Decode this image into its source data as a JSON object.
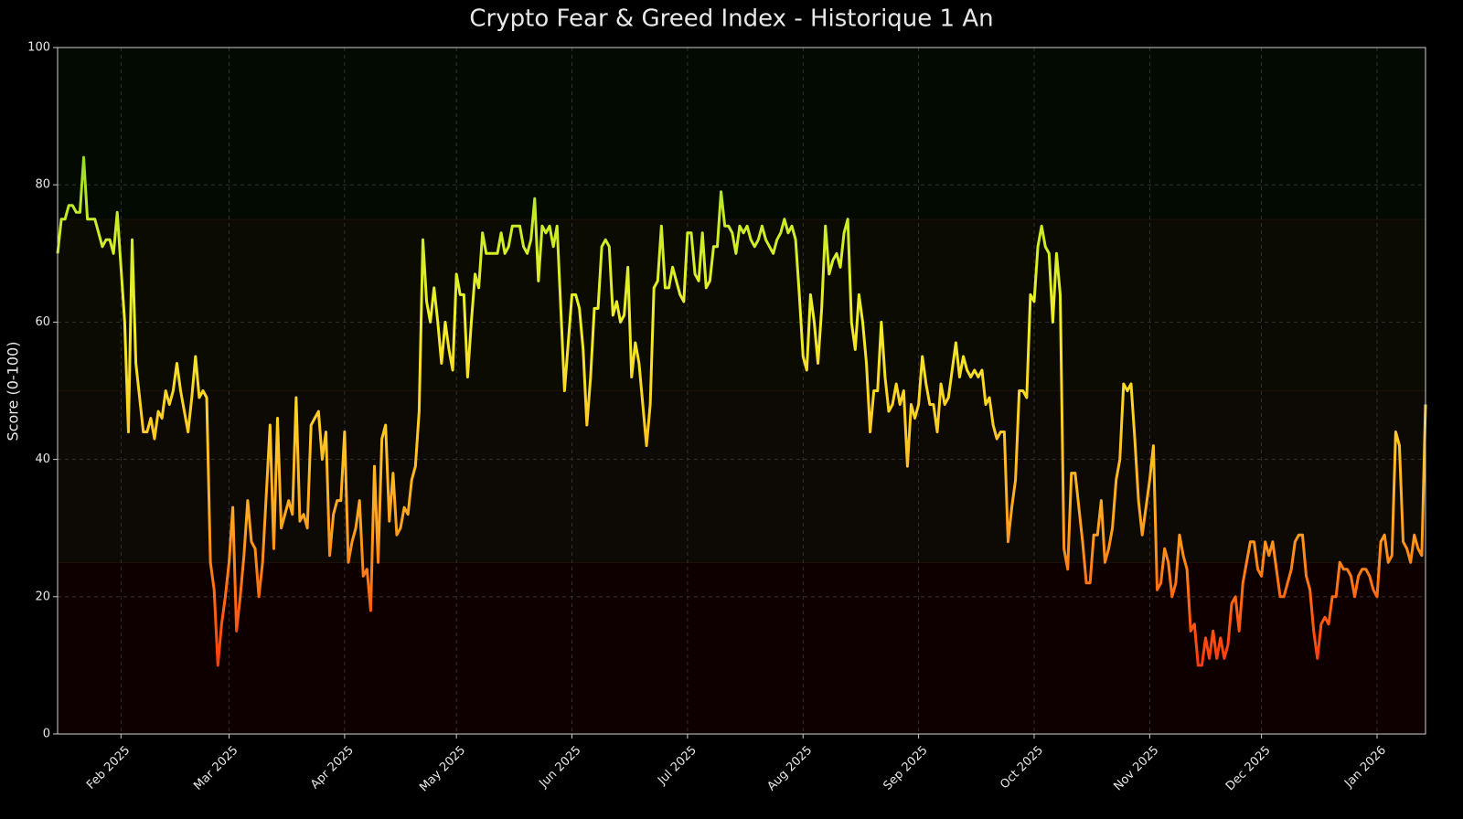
{
  "chart_data": {
    "type": "line",
    "title": "Crypto Fear & Greed Index - Historique 1 An",
    "y_label": "Score (0-100)",
    "series": [
      {
        "name": "Fear & Greed Index",
        "values": [
          70,
          75,
          75,
          77,
          77,
          76,
          76,
          84,
          75,
          75,
          75,
          73,
          71,
          72,
          72,
          70,
          76,
          68,
          60,
          44,
          72,
          54,
          49,
          44,
          44,
          46,
          43,
          47,
          46,
          50,
          48,
          50,
          54,
          50,
          47,
          44,
          49,
          55,
          49,
          50,
          49,
          25,
          21,
          10,
          16,
          20,
          25,
          33,
          15,
          20,
          26,
          34,
          28,
          27,
          20,
          25,
          35,
          45,
          27,
          46,
          30,
          32,
          34,
          32,
          49,
          31,
          32,
          30,
          45,
          46,
          47,
          40,
          44,
          26,
          32,
          34,
          34,
          44,
          25,
          28,
          30,
          34,
          23,
          24,
          18,
          39,
          25,
          43,
          45,
          31,
          38,
          29,
          30,
          33,
          32,
          37,
          39,
          47,
          72,
          63,
          60,
          65,
          60,
          54,
          60,
          56,
          53,
          67,
          64,
          64,
          52,
          60,
          67,
          65,
          73,
          70,
          70,
          70,
          70,
          73,
          70,
          71,
          74,
          74,
          74,
          71,
          70,
          72,
          78,
          66,
          74,
          73,
          74,
          71,
          74,
          62,
          50,
          57,
          64,
          64,
          62,
          56,
          45,
          52,
          62,
          62,
          71,
          72,
          71,
          61,
          63,
          60,
          61,
          68,
          52,
          57,
          54,
          48,
          42,
          48,
          65,
          66,
          74,
          65,
          65,
          68,
          66,
          64,
          63,
          73,
          73,
          67,
          66,
          73,
          65,
          66,
          71,
          71,
          79,
          74,
          74,
          73,
          70,
          74,
          73,
          74,
          72,
          71,
          72,
          74,
          72,
          71,
          70,
          72,
          73,
          75,
          73,
          74,
          72,
          64,
          55,
          53,
          64,
          60,
          54,
          62,
          74,
          67,
          69,
          70,
          68,
          73,
          75,
          60,
          56,
          64,
          60,
          54,
          44,
          50,
          50,
          60,
          52,
          47,
          48,
          51,
          48,
          50,
          39,
          48,
          46,
          48,
          55,
          51,
          48,
          48,
          44,
          51,
          48,
          49,
          53,
          57,
          52,
          55,
          53,
          52,
          53,
          52,
          53,
          48,
          49,
          45,
          43,
          44,
          44,
          28,
          33,
          37,
          50,
          50,
          49,
          64,
          63,
          71,
          74,
          71,
          70,
          60,
          70,
          64,
          27,
          24,
          38,
          38,
          33,
          28,
          22,
          22,
          29,
          29,
          34,
          25,
          27,
          30,
          37,
          40,
          51,
          50,
          51,
          43,
          34,
          29,
          33,
          37,
          42,
          21,
          22,
          27,
          25,
          20,
          22,
          29,
          26,
          24,
          15,
          16,
          10,
          10,
          14,
          11,
          15,
          11,
          14,
          11,
          13,
          19,
          20,
          15,
          22,
          25,
          28,
          28,
          24,
          23,
          28,
          26,
          28,
          24,
          20,
          20,
          22,
          24,
          28,
          29,
          29,
          23,
          21,
          15,
          11,
          16,
          17,
          16,
          20,
          20,
          25,
          24,
          24,
          23,
          20,
          23,
          24,
          24,
          23,
          21,
          20,
          28,
          29,
          25,
          26,
          44,
          42,
          28,
          27,
          25,
          29,
          27,
          26,
          48
        ]
      }
    ],
    "color_scale": [
      {
        "value": 10,
        "color": "#ff3a10"
      },
      {
        "value": 20,
        "color": "#ff6a10"
      },
      {
        "value": 30,
        "color": "#ffa020"
      },
      {
        "value": 45,
        "color": "#ffcc25"
      },
      {
        "value": 60,
        "color": "#f0ee2a"
      },
      {
        "value": 75,
        "color": "#c8ec28"
      },
      {
        "value": 85,
        "color": "#90d828"
      }
    ],
    "zones": [
      {
        "from": 0,
        "to": 25,
        "color": "#0f0000"
      },
      {
        "from": 25,
        "to": 50,
        "color": "#0d0904"
      },
      {
        "from": 50,
        "to": 75,
        "color": "#0c0b02"
      },
      {
        "from": 75,
        "to": 100,
        "color": "#020a02"
      }
    ],
    "xlim": [
      0,
      367
    ],
    "xticks": [
      {
        "value": 17,
        "label": "Feb 2025"
      },
      {
        "value": 46,
        "label": "Mar 2025"
      },
      {
        "value": 77,
        "label": "Apr 2025"
      },
      {
        "value": 107,
        "label": "May 2025"
      },
      {
        "value": 138,
        "label": "Jun 2025"
      },
      {
        "value": 169,
        "label": "Jul 2025"
      },
      {
        "value": 200,
        "label": "Aug 2025"
      },
      {
        "value": 231,
        "label": "Sep 2025"
      },
      {
        "value": 262,
        "label": "Oct 2025"
      },
      {
        "value": 293,
        "label": "Nov 2025"
      },
      {
        "value": 323,
        "label": "Dec 2025"
      },
      {
        "value": 354,
        "label": "Jan 2026"
      }
    ],
    "ylim": [
      0,
      100
    ],
    "yticks": [
      0,
      20,
      40,
      60,
      80,
      100
    ],
    "grid": true
  }
}
